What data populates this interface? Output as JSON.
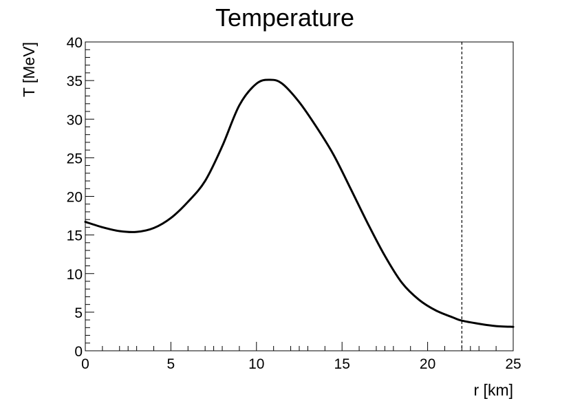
{
  "chart_data": {
    "type": "line",
    "title": "Temperature",
    "xlabel": "r [km]",
    "ylabel": "T [MeV]",
    "xlim": [
      0,
      25
    ],
    "ylim": [
      0,
      40
    ],
    "x_ticks": [
      0,
      5,
      10,
      15,
      20,
      25
    ],
    "y_ticks": [
      0,
      5,
      10,
      15,
      20,
      25,
      30,
      35,
      40
    ],
    "x_tick_labels": [
      "0",
      "5",
      "10",
      "15",
      "20",
      "25"
    ],
    "y_tick_labels": [
      "0",
      "5",
      "10",
      "15",
      "20",
      "25",
      "30",
      "35",
      "40"
    ],
    "grid": false,
    "legend": "none",
    "line_color": "#000000",
    "series": [
      {
        "x": [
          0,
          1,
          2,
          3,
          4,
          5,
          6,
          7,
          8,
          9,
          10,
          10.8,
          11.5,
          12.5,
          13.5,
          14.5,
          15.5,
          16.5,
          17.5,
          18.5,
          19.5,
          20.5,
          21.5,
          22,
          23,
          24,
          25
        ],
        "y": [
          16.7,
          16.0,
          15.5,
          15.4,
          15.9,
          17.2,
          19.3,
          22.0,
          26.5,
          31.8,
          34.6,
          35.1,
          34.6,
          32.2,
          29.0,
          25.4,
          21.0,
          16.5,
          12.3,
          8.8,
          6.6,
          5.2,
          4.3,
          3.9,
          3.5,
          3.2,
          3.1
        ]
      }
    ],
    "annotations": [
      {
        "type": "vline",
        "x": 22,
        "style": "dashed"
      }
    ]
  }
}
